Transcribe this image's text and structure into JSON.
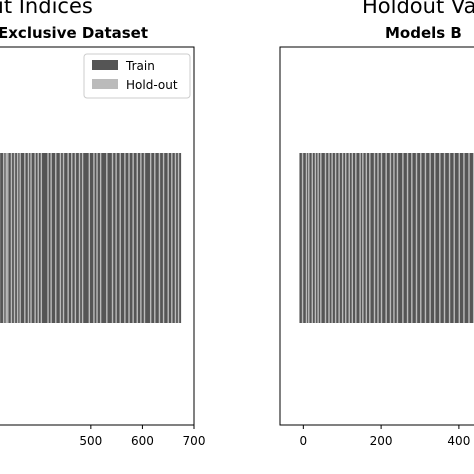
{
  "titles": {
    "left_title": "it Indices",
    "left_subtitle": "Exclusive Dataset",
    "right_title": "Holdout Va",
    "right_subtitle": "Models B"
  },
  "chart_data": [
    {
      "type": "bar",
      "title": "Exclusive Dataset",
      "xlim": [
        320,
        700
      ],
      "xticks": [
        500,
        600,
        700
      ],
      "legend": {
        "placement": "top-right",
        "entries": [
          {
            "label": "Train",
            "color": "#555555"
          },
          {
            "label": "Hold-out",
            "color": "#bbbbbb"
          }
        ]
      },
      "index_range": [
        320,
        675
      ],
      "holdout_indices": [
        323,
        331,
        336,
        339,
        346,
        352,
        358,
        363,
        372,
        379,
        384,
        392,
        398,
        404,
        417,
        423,
        432,
        441,
        447,
        456,
        463,
        470,
        478,
        484,
        497,
        506,
        512,
        519,
        531,
        542,
        549,
        557,
        566,
        574,
        582,
        590,
        597,
        604,
        616,
        624,
        633,
        641,
        650,
        657,
        664,
        670
      ]
    },
    {
      "type": "bar",
      "title": "Models B",
      "xlim": [
        -60,
        480
      ],
      "xticks": [
        0,
        200,
        400
      ],
      "index_range": [
        -10,
        480
      ],
      "holdout_indices": [
        -2,
        8,
        14,
        23,
        31,
        38,
        45,
        57,
        66,
        74,
        83,
        92,
        101,
        109,
        118,
        126,
        135,
        146,
        153,
        162,
        171,
        183,
        192,
        201,
        213,
        224,
        233,
        242,
        256,
        268,
        279,
        291,
        302,
        314,
        326,
        338,
        351,
        363,
        376,
        388,
        401,
        413,
        426,
        438,
        452,
        466,
        477
      ]
    }
  ],
  "colors": {
    "train": "#555555",
    "holdout": "#bbbbbb"
  }
}
